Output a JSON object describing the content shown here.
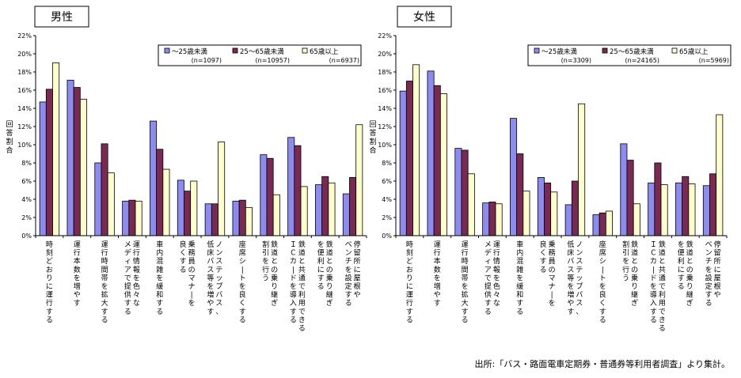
{
  "source_note": "出所:「バス・路面電車定期券・普通券等利用者調査」より集計。",
  "colors": {
    "under25": "#8b8bf0",
    "age25_65": "#7a2a52",
    "over65": "#ffffcc",
    "border": "#000000"
  },
  "chart_data": [
    {
      "type": "bar",
      "title": "男性",
      "ylabel": "回答割合",
      "ylim": [
        0,
        22
      ],
      "yticks": [
        "0%",
        "2%",
        "4%",
        "6%",
        "8%",
        "10%",
        "12%",
        "14%",
        "16%",
        "18%",
        "20%",
        "22%"
      ],
      "legend_position": "top-right",
      "grid": false,
      "categories": [
        "時刻どおりに運行する",
        "運行本数を増やす",
        "運行時間帯を拡大する",
        "運行情報を色々なメディアで提供する",
        "車内混雑を緩和する",
        "乗務員のマナーを良くする",
        "ノンステップバス、低床バス等を増やす",
        "座席シートを良くする",
        "鉄道との乗り継ぎ割引を行う",
        "鉄道と共通で利用できるＩＣカードを導入する",
        "鉄道との乗り継ぎを便利にする",
        "停留所に屋根やベンチを設定する"
      ],
      "series": [
        {
          "name": "～25歳未満",
          "sample": "(n=1097)",
          "values": [
            14.7,
            17.1,
            8.0,
            3.8,
            12.6,
            6.1,
            3.5,
            3.8,
            8.9,
            10.8,
            5.6,
            4.6
          ]
        },
        {
          "name": "25～65歳未満",
          "sample": "(n=10957)",
          "values": [
            16.1,
            16.3,
            10.1,
            3.9,
            9.5,
            4.9,
            3.5,
            3.9,
            8.5,
            9.9,
            6.5,
            6.4
          ]
        },
        {
          "name": "65歳以上",
          "sample": "(n=6937)",
          "values": [
            19.0,
            15.0,
            6.9,
            3.8,
            7.3,
            6.0,
            10.3,
            3.1,
            4.5,
            5.4,
            5.8,
            12.2
          ]
        }
      ]
    },
    {
      "type": "bar",
      "title": "女性",
      "ylabel": "回答割合",
      "ylim": [
        0,
        22
      ],
      "yticks": [
        "0%",
        "2%",
        "4%",
        "6%",
        "8%",
        "10%",
        "12%",
        "14%",
        "16%",
        "18%",
        "20%",
        "22%"
      ],
      "legend_position": "top-right",
      "grid": false,
      "categories": [
        "時刻どおりに運行する",
        "運行本数を増やす",
        "運行時間帯を拡大する",
        "運行情報を色々なメディアで提供する",
        "車内混雑を緩和する",
        "乗務員のマナーを良くする",
        "ノンステップバス、低床バス等を増やす",
        "座席シートを良くする",
        "鉄道との乗り継ぎ割引を行う",
        "鉄道と共通で利用できるＩＣカードを導入する",
        "鉄道との乗り継ぎを便利にする",
        "停留所に屋根やベンチを設定する"
      ],
      "series": [
        {
          "name": "～25歳未満",
          "sample": "(n=3309)",
          "values": [
            15.9,
            18.1,
            9.6,
            3.6,
            12.9,
            6.4,
            3.4,
            2.3,
            10.1,
            5.8,
            5.8,
            5.5
          ]
        },
        {
          "name": "25～65歳未満",
          "sample": "(n=24165)",
          "values": [
            17.0,
            16.5,
            9.4,
            3.7,
            9.0,
            5.8,
            6.0,
            2.5,
            8.3,
            8.0,
            6.5,
            6.8
          ]
        },
        {
          "name": "65歳以上",
          "sample": "(n=5969)",
          "values": [
            18.8,
            15.6,
            6.8,
            3.5,
            4.9,
            4.8,
            14.5,
            2.7,
            3.5,
            5.6,
            5.7,
            13.3
          ]
        }
      ]
    }
  ]
}
